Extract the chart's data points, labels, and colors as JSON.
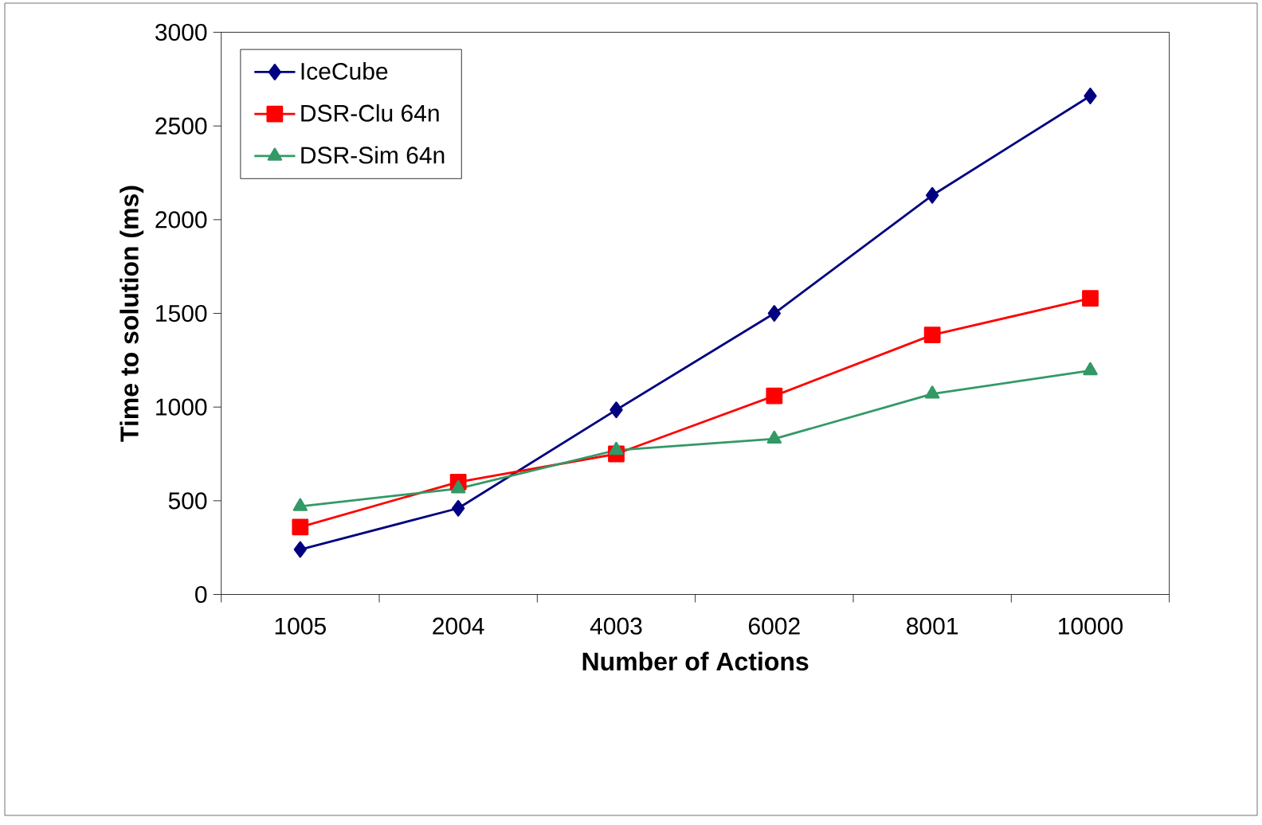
{
  "chart_data": {
    "type": "line",
    "xlabel": "Number of Actions",
    "ylabel": "Time to solution (ms)",
    "categories": [
      "1005",
      "2004",
      "4003",
      "6002",
      "8001",
      "10000"
    ],
    "series": [
      {
        "name": "IceCube",
        "color": "#000080",
        "marker": "diamond",
        "values": [
          240,
          460,
          985,
          1500,
          2130,
          2660
        ]
      },
      {
        "name": "DSR-Clu 64n",
        "color": "#ff0000",
        "marker": "square",
        "values": [
          360,
          600,
          750,
          1060,
          1385,
          1580
        ]
      },
      {
        "name": "DSR-Sim 64n",
        "color": "#339966",
        "marker": "triangle",
        "values": [
          470,
          565,
          770,
          830,
          1070,
          1195
        ]
      }
    ],
    "ylim": [
      0,
      3000
    ],
    "yticks": [
      0,
      500,
      1000,
      1500,
      2000,
      2500,
      3000
    ],
    "grid": false,
    "legend": "top left",
    "line_style": "solid"
  }
}
